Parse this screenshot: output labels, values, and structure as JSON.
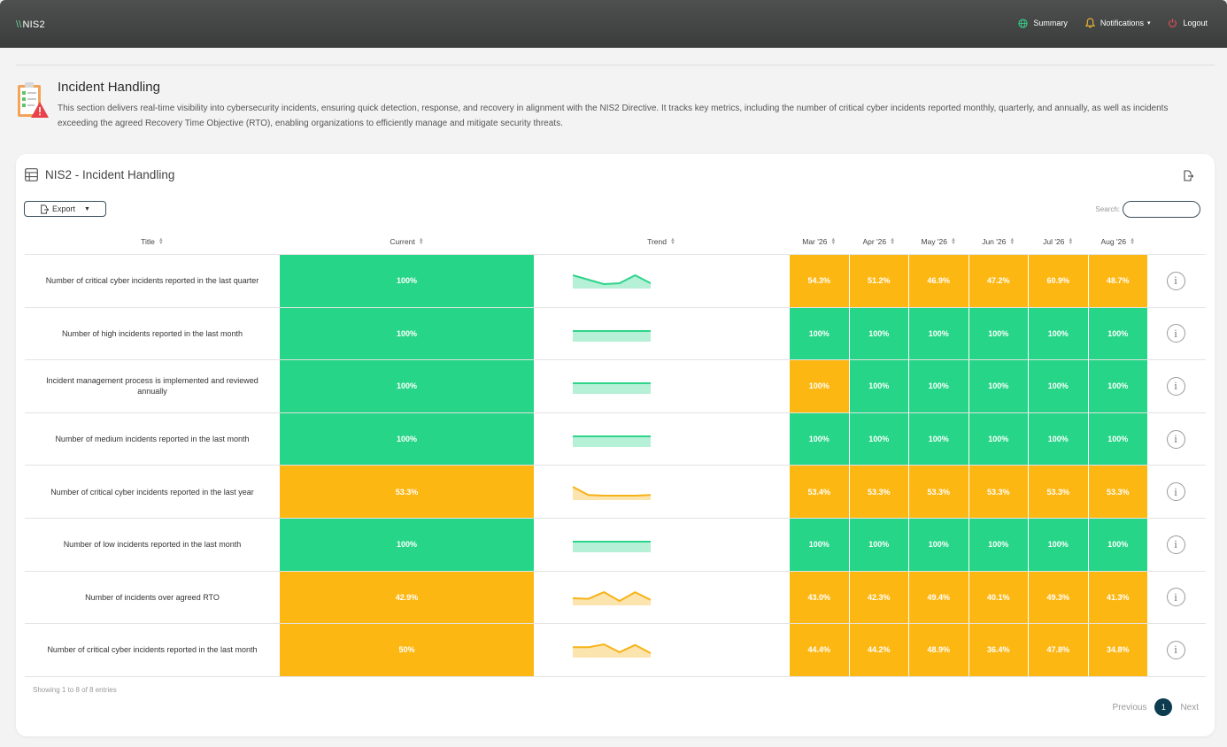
{
  "app": {
    "slashes": "\\\\",
    "name": "NIS2"
  },
  "nav": [
    {
      "label": "Summary",
      "icon": "globe-icon",
      "color": "#37c986"
    },
    {
      "label": "Notifications",
      "icon": "bell-icon",
      "color": "#f3b82f",
      "caret": "▾"
    },
    {
      "label": "Logout",
      "icon": "power-icon",
      "color": "#e34d4d"
    }
  ],
  "section": {
    "title": "Incident Handling",
    "description": "This section delivers real-time visibility into cybersecurity incidents, ensuring quick detection, response, and recovery in alignment with the NIS2 Directive. It tracks key metrics, including the number of critical cyber incidents reported monthly, quarterly, and annually, as well as incidents exceeding the agreed Recovery Time Objective (RTO), enabling organizations to efficiently manage and mitigate security threats."
  },
  "card": {
    "title": "NIS2 - Incident Handling"
  },
  "toolbar": {
    "export_label": "Export",
    "export_caret": "▼",
    "search_label": "Search:",
    "search_value": ""
  },
  "columns": {
    "title": "Title",
    "current": "Current",
    "trend": "Trend",
    "months": [
      "Mar '26",
      "Apr '26",
      "May '26",
      "Jun '26",
      "Jul '26",
      "Aug '26"
    ]
  },
  "colors": {
    "green": "#26d587",
    "amber": "#fdb713",
    "trend_green": "#2dd48a",
    "trend_amber": "#f7b216"
  },
  "rows": [
    {
      "title": "Number of critical cyber incidents reported in the last quarter",
      "current": "100%",
      "current_status": "green",
      "trend": [
        100,
        75,
        50,
        55,
        100,
        55
      ],
      "trend_status": "green",
      "months": [
        {
          "v": "54.3%",
          "s": "amber"
        },
        {
          "v": "51.2%",
          "s": "amber"
        },
        {
          "v": "46.9%",
          "s": "amber"
        },
        {
          "v": "47.2%",
          "s": "amber"
        },
        {
          "v": "60.9%",
          "s": "amber"
        },
        {
          "v": "48.7%",
          "s": "amber"
        }
      ]
    },
    {
      "title": "Number of high incidents reported in the last month",
      "current": "100%",
      "current_status": "green",
      "trend": [
        100,
        100,
        100,
        100,
        100,
        100
      ],
      "trend_status": "green",
      "months": [
        {
          "v": "100%",
          "s": "green"
        },
        {
          "v": "100%",
          "s": "green"
        },
        {
          "v": "100%",
          "s": "green"
        },
        {
          "v": "100%",
          "s": "green"
        },
        {
          "v": "100%",
          "s": "green"
        },
        {
          "v": "100%",
          "s": "green"
        }
      ]
    },
    {
      "title": "Incident management process is implemented and reviewed annually",
      "current": "100%",
      "current_status": "green",
      "trend": [
        100,
        100,
        100,
        100,
        100,
        100
      ],
      "trend_status": "green",
      "months": [
        {
          "v": "100%",
          "s": "amber"
        },
        {
          "v": "100%",
          "s": "green"
        },
        {
          "v": "100%",
          "s": "green"
        },
        {
          "v": "100%",
          "s": "green"
        },
        {
          "v": "100%",
          "s": "green"
        },
        {
          "v": "100%",
          "s": "green"
        }
      ]
    },
    {
      "title": "Number of medium incidents reported in the last month",
      "current": "100%",
      "current_status": "green",
      "trend": [
        100,
        100,
        100,
        100,
        100,
        100
      ],
      "trend_status": "green",
      "months": [
        {
          "v": "100%",
          "s": "green"
        },
        {
          "v": "100%",
          "s": "green"
        },
        {
          "v": "100%",
          "s": "green"
        },
        {
          "v": "100%",
          "s": "green"
        },
        {
          "v": "100%",
          "s": "green"
        },
        {
          "v": "100%",
          "s": "green"
        }
      ]
    },
    {
      "title": "Number of critical cyber incidents reported in the last year",
      "current": "53.3%",
      "current_status": "amber",
      "trend": [
        100,
        45,
        40,
        40,
        40,
        45
      ],
      "trend_status": "amber",
      "months": [
        {
          "v": "53.4%",
          "s": "amber"
        },
        {
          "v": "53.3%",
          "s": "amber"
        },
        {
          "v": "53.3%",
          "s": "amber"
        },
        {
          "v": "53.3%",
          "s": "amber"
        },
        {
          "v": "53.3%",
          "s": "amber"
        },
        {
          "v": "53.3%",
          "s": "amber"
        }
      ]
    },
    {
      "title": "Number of low incidents reported in the last month",
      "current": "100%",
      "current_status": "green",
      "trend": [
        100,
        100,
        100,
        100,
        100,
        100
      ],
      "trend_status": "green",
      "months": [
        {
          "v": "100%",
          "s": "green"
        },
        {
          "v": "100%",
          "s": "green"
        },
        {
          "v": "100%",
          "s": "green"
        },
        {
          "v": "100%",
          "s": "green"
        },
        {
          "v": "100%",
          "s": "green"
        },
        {
          "v": "100%",
          "s": "green"
        }
      ]
    },
    {
      "title": "Number of incidents over agreed RTO",
      "current": "42.9%",
      "current_status": "amber",
      "trend": [
        43.0,
        42.3,
        49.4,
        40.1,
        49.3,
        41.3
      ],
      "trend_status": "amber",
      "months": [
        {
          "v": "43.0%",
          "s": "amber"
        },
        {
          "v": "42.3%",
          "s": "amber"
        },
        {
          "v": "49.4%",
          "s": "amber"
        },
        {
          "v": "40.1%",
          "s": "amber"
        },
        {
          "v": "49.3%",
          "s": "amber"
        },
        {
          "v": "41.3%",
          "s": "amber"
        }
      ]
    },
    {
      "title": "Number of critical cyber incidents reported in the last month",
      "current": "50%",
      "current_status": "amber",
      "trend": [
        44.4,
        44.2,
        48.9,
        36.4,
        47.8,
        34.8
      ],
      "trend_status": "amber",
      "months": [
        {
          "v": "44.4%",
          "s": "amber"
        },
        {
          "v": "44.2%",
          "s": "amber"
        },
        {
          "v": "48.9%",
          "s": "amber"
        },
        {
          "v": "36.4%",
          "s": "amber"
        },
        {
          "v": "47.8%",
          "s": "amber"
        },
        {
          "v": "34.8%",
          "s": "amber"
        }
      ]
    }
  ],
  "footer": {
    "showing": "Showing 1 to 8 of 8 entries",
    "prev": "Previous",
    "page": "1",
    "next": "Next"
  }
}
